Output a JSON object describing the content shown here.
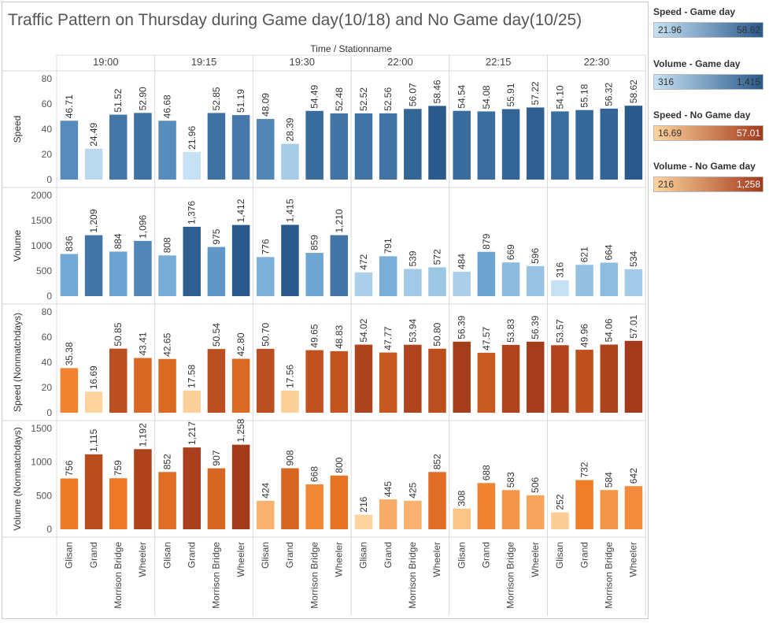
{
  "title": "Traffic Pattern on Thursday during Game day(10/18) and No Game day(10/25)",
  "legends": [
    {
      "title": "Speed - Game day",
      "min": "21.96",
      "max": "58.62",
      "color_from": "#c6e1f3",
      "color_to": "#2a5a8c"
    },
    {
      "title": "Volume - Game day",
      "min": "316",
      "max": "1,415",
      "color_from": "#c6e1f3",
      "color_to": "#2a5a8c"
    },
    {
      "title": "Speed - No Game day",
      "min": "16.69",
      "max": "57.01",
      "color_from": "#fdd49e",
      "color_to": "#a33a1c"
    },
    {
      "title": "Volume  - No Game day",
      "min": "216",
      "max": "1,258",
      "color_from": "#fdd49e",
      "color_to": "#a33a1c"
    }
  ],
  "chart_data": {
    "type": "bar",
    "column_header": "Time / Stationname",
    "times": [
      "19:00",
      "19:15",
      "19:30",
      "22:00",
      "22:15",
      "22:30"
    ],
    "stations": [
      "Glisan",
      "Grand",
      "Morrison Bridge",
      "Wheeler"
    ],
    "rows": [
      {
        "name": "Speed",
        "ylim": [
          0,
          80
        ],
        "ticks": [
          0,
          20,
          40,
          60,
          80
        ],
        "palette": "blue",
        "decimals": 2,
        "values": [
          [
            46.71,
            24.49,
            51.52,
            52.9
          ],
          [
            46.68,
            21.96,
            52.85,
            51.19
          ],
          [
            48.09,
            28.39,
            54.49,
            52.48
          ],
          [
            52.52,
            52.56,
            56.07,
            58.46
          ],
          [
            54.54,
            54.08,
            55.91,
            57.22
          ],
          [
            54.1,
            55.18,
            56.32,
            58.62
          ]
        ]
      },
      {
        "name": "Volume",
        "ylim": [
          0,
          2000
        ],
        "ticks": [
          0,
          500,
          1000,
          1500,
          2000
        ],
        "palette": "blue",
        "decimals": 0,
        "values": [
          [
            836,
            1209,
            884,
            1096
          ],
          [
            808,
            1376,
            975,
            1412
          ],
          [
            776,
            1415,
            859,
            1210
          ],
          [
            472,
            791,
            539,
            572
          ],
          [
            484,
            879,
            669,
            596
          ],
          [
            316,
            621,
            664,
            534
          ]
        ]
      },
      {
        "name": "Speed (Nonmatchdays)",
        "ylim": [
          0,
          80
        ],
        "ticks": [
          0,
          20,
          40,
          60,
          80
        ],
        "palette": "orange",
        "decimals": 2,
        "values": [
          [
            35.38,
            16.69,
            50.85,
            43.41
          ],
          [
            42.65,
            17.58,
            50.54,
            42.8
          ],
          [
            50.7,
            17.56,
            49.65,
            48.83
          ],
          [
            54.02,
            47.77,
            53.94,
            50.8
          ],
          [
            56.39,
            47.57,
            53.83,
            56.39
          ],
          [
            53.57,
            49.96,
            54.06,
            57.01
          ]
        ]
      },
      {
        "name": "Volume (Nonmatchdays)",
        "ylim": [
          0,
          1500
        ],
        "ticks": [
          0,
          500,
          1000,
          1500
        ],
        "palette": "orange",
        "decimals": 0,
        "values": [
          [
            756,
            1115,
            759,
            1192
          ],
          [
            852,
            1217,
            907,
            1258
          ],
          [
            424,
            908,
            668,
            800
          ],
          [
            216,
            445,
            425,
            852
          ],
          [
            308,
            688,
            583,
            506
          ],
          [
            252,
            732,
            584,
            642
          ]
        ]
      }
    ]
  }
}
